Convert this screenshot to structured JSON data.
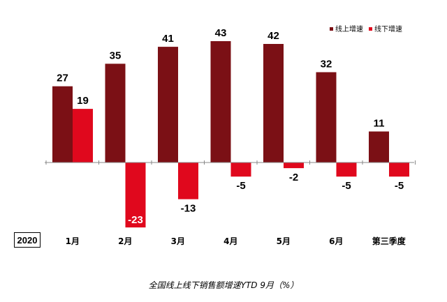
{
  "year_label": "2020",
  "caption": "全国线上线下销售额增速YTD 9月（%）",
  "colors": {
    "online": "#7b1015",
    "offline": "#e0081d",
    "axis": "#888888"
  },
  "chart_data": {
    "type": "bar",
    "categories": [
      "1月",
      "2月",
      "3月",
      "4月",
      "5月",
      "6月",
      "第三季度"
    ],
    "series": [
      {
        "name": "线上增速",
        "values": [
          27,
          35,
          41,
          43,
          42,
          32,
          11
        ],
        "color": "#7b1015"
      },
      {
        "name": "线下增速",
        "values": [
          19,
          -23,
          -13,
          -5,
          -2,
          -5,
          -5
        ],
        "color": "#e0081d"
      }
    ],
    "title": "",
    "xlabel": "",
    "ylabel": "",
    "ylim": [
      -23,
      43
    ],
    "grid": false,
    "legend_position": "top-right"
  }
}
